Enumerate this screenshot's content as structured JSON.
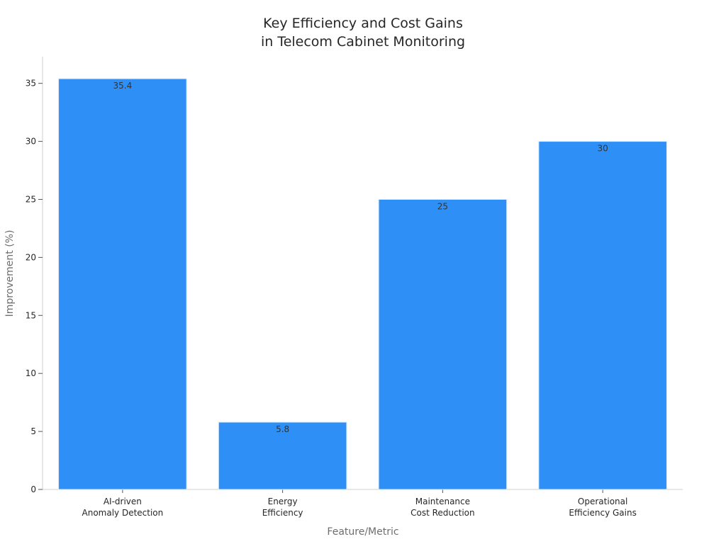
{
  "chart_data": {
    "type": "bar",
    "title_lines": [
      "Key Efficiency and Cost Gains",
      "in Telecom Cabinet Monitoring"
    ],
    "xlabel": "Feature/Metric",
    "ylabel": "Improvement (%)",
    "categories": [
      [
        "AI-driven",
        "Anomaly Detection"
      ],
      [
        "Energy",
        "Efficiency"
      ],
      [
        "Maintenance",
        "Cost Reduction"
      ],
      [
        "Operational",
        "Efficiency Gains"
      ]
    ],
    "values": [
      35.4,
      5.8,
      25,
      30
    ],
    "value_labels": [
      "35.4",
      "5.8",
      "25",
      "30"
    ],
    "yticks": [
      0,
      5,
      10,
      15,
      20,
      25,
      30,
      35
    ],
    "ylim": [
      0,
      37.3
    ],
    "bar_color": "#2e90f7",
    "grid": false,
    "legend": "none"
  }
}
